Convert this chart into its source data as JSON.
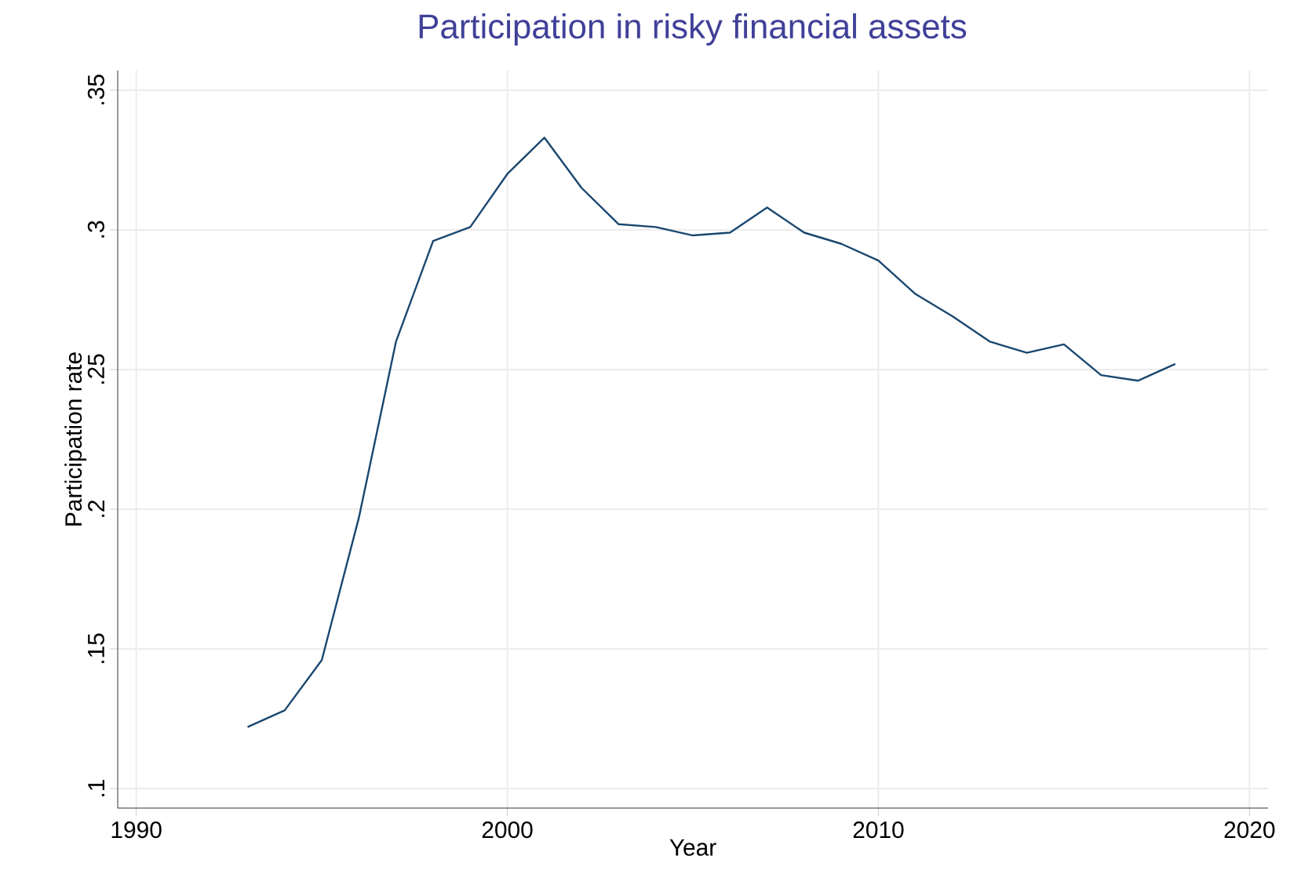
{
  "chart_data": {
    "type": "line",
    "title": "Participation in risky financial assets",
    "xlabel": "Year",
    "ylabel": "Participation rate",
    "x": [
      1993,
      1994,
      1995,
      1996,
      1997,
      1998,
      1999,
      2000,
      2001,
      2002,
      2003,
      2004,
      2005,
      2006,
      2007,
      2008,
      2009,
      2010,
      2011,
      2012,
      2013,
      2014,
      2015,
      2016,
      2017,
      2018
    ],
    "series": [
      {
        "color": "#1a476f",
        "values": [
          0.122,
          0.128,
          0.146,
          0.197,
          0.26,
          0.296,
          0.301,
          0.32,
          0.333,
          0.315,
          0.302,
          0.301,
          0.298,
          0.299,
          0.308,
          0.299,
          0.295,
          0.289,
          0.277,
          0.269,
          0.26,
          0.256,
          0.259,
          0.248,
          0.246,
          0.252
        ]
      }
    ],
    "xlim": [
      1989.5,
      2020.5
    ],
    "ylim": [
      0.093,
      0.357
    ],
    "xticks": [
      1990,
      2000,
      2010,
      2020
    ],
    "yticks": [
      {
        "value": 0.1,
        "label": ".1"
      },
      {
        "value": 0.15,
        "label": ".15"
      },
      {
        "value": 0.2,
        "label": ".2"
      },
      {
        "value": 0.25,
        "label": ".25"
      },
      {
        "value": 0.3,
        "label": ".3"
      },
      {
        "value": 0.35,
        "label": ".35"
      }
    ],
    "grid": true,
    "marker": "none",
    "line_style": "solid"
  }
}
